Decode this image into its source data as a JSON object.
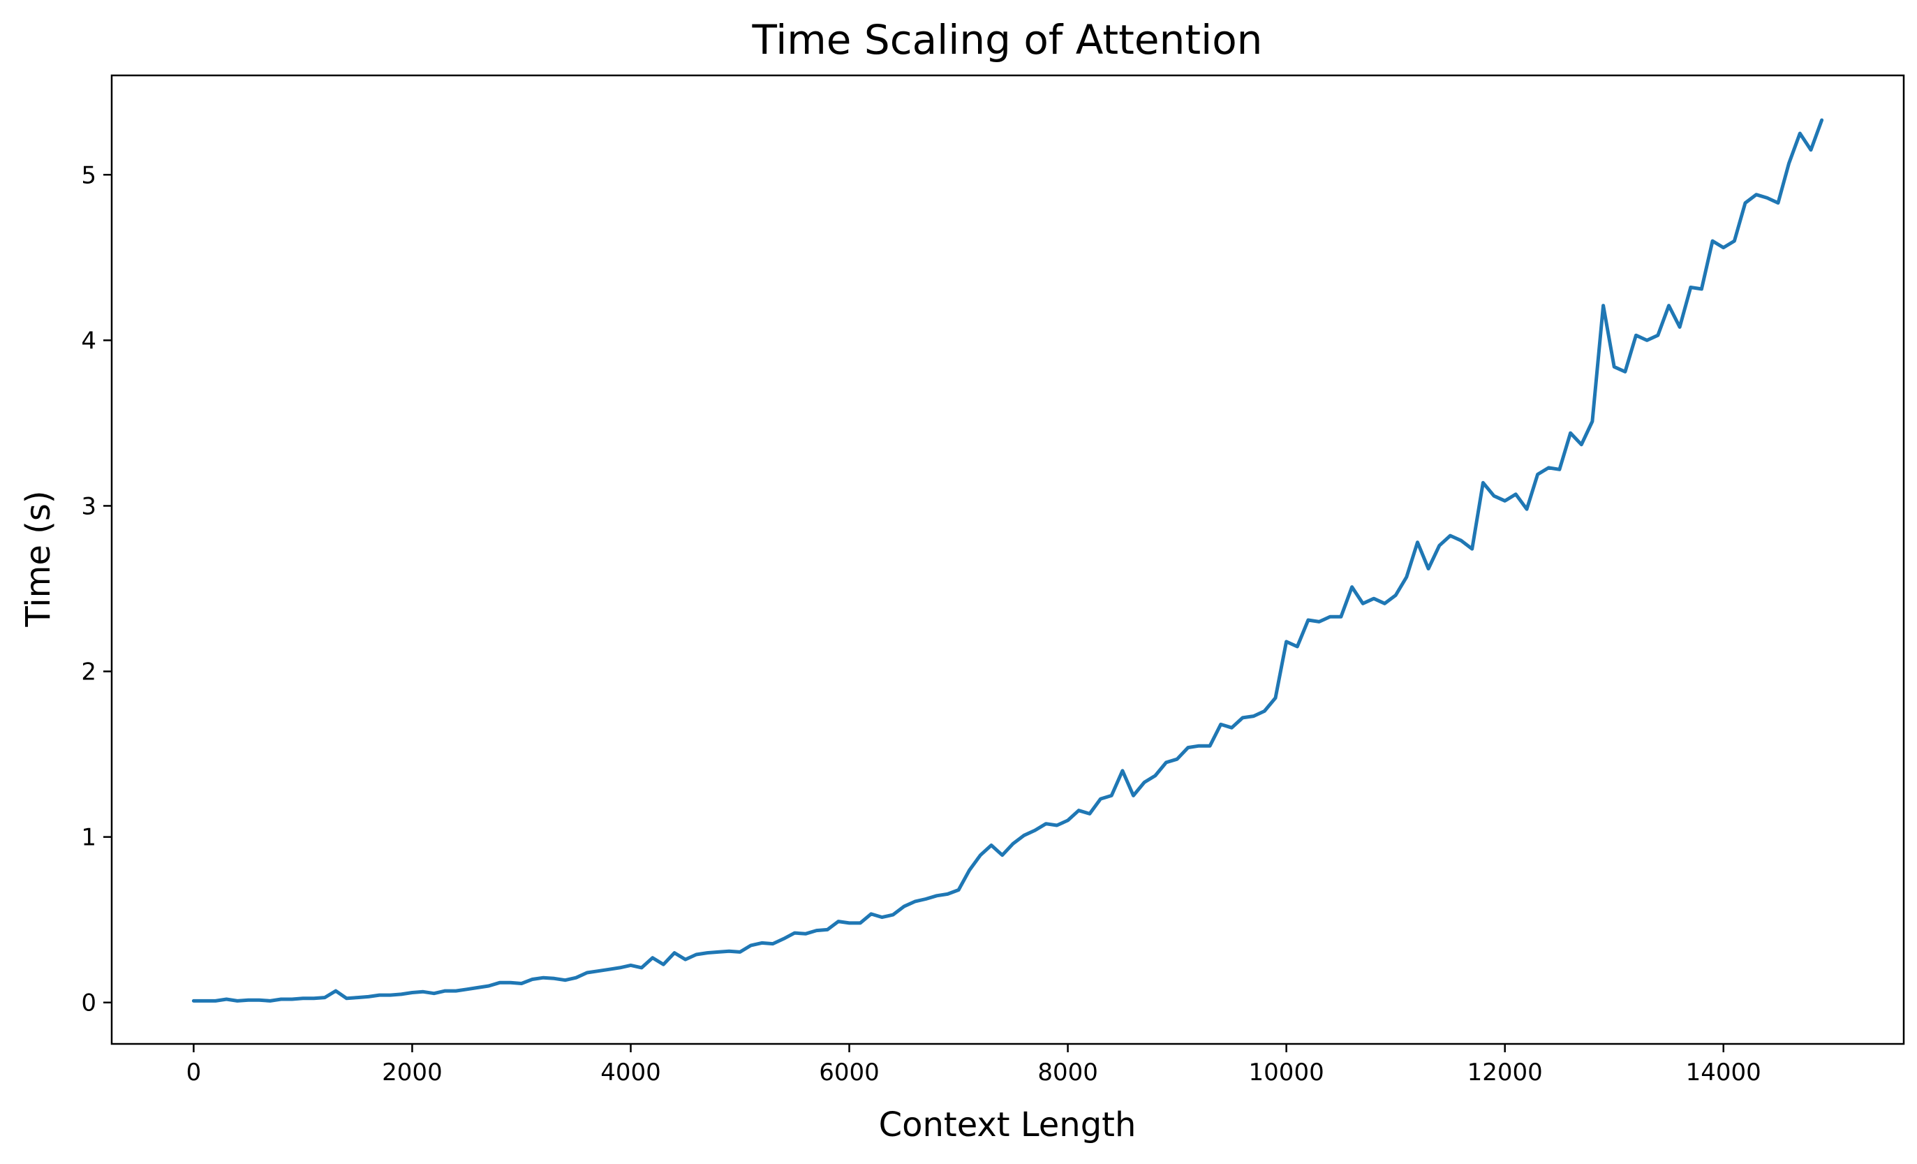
{
  "chart_data": {
    "type": "line",
    "title": "Time Scaling of Attention",
    "xlabel": "Context Length",
    "ylabel": "Time (s)",
    "xlim": [
      -750,
      15650
    ],
    "ylim": [
      -0.25,
      5.6
    ],
    "xticks": [
      0,
      2000,
      4000,
      6000,
      8000,
      10000,
      12000,
      14000
    ],
    "yticks": [
      0,
      1,
      2,
      3,
      4,
      5
    ],
    "grid": false,
    "line_color": "#1f77b4",
    "series": [
      {
        "x": [
          0,
          100,
          200,
          300,
          400,
          500,
          600,
          700,
          800,
          900,
          1000,
          1100,
          1200,
          1300,
          1400,
          1500,
          1600,
          1700,
          1800,
          1900,
          2000,
          2100,
          2200,
          2300,
          2400,
          2500,
          2600,
          2700,
          2800,
          2900,
          3000,
          3100,
          3200,
          3300,
          3400,
          3500,
          3600,
          3700,
          3800,
          3900,
          4000,
          4100,
          4200,
          4300,
          4400,
          4500,
          4600,
          4700,
          4800,
          4900,
          5000,
          5100,
          5200,
          5300,
          5400,
          5500,
          5600,
          5700,
          5800,
          5900,
          6000,
          6100,
          6200,
          6300,
          6400,
          6500,
          6600,
          6700,
          6800,
          6900,
          7000,
          7100,
          7200,
          7300,
          7400,
          7500,
          7600,
          7700,
          7800,
          7900,
          8000,
          8100,
          8200,
          8300,
          8400,
          8500,
          8600,
          8700,
          8800,
          8900,
          9000,
          9100,
          9200,
          9300,
          9400,
          9500,
          9600,
          9700,
          9800,
          9900,
          10000,
          10100,
          10200,
          10300,
          10400,
          10500,
          10600,
          10700,
          10800,
          10900,
          11000,
          11100,
          11200,
          11300,
          11400,
          11500,
          11600,
          11700,
          11800,
          11900,
          12000,
          12100,
          12200,
          12300,
          12400,
          12500,
          12600,
          12700,
          12800,
          12900,
          13000,
          13100,
          13200,
          13300,
          13400,
          13500,
          13600,
          13700,
          13800,
          13900,
          14000,
          14100,
          14200,
          14300,
          14400,
          14500,
          14600,
          14700,
          14800,
          14900
        ],
        "y": [
          0.01,
          0.01,
          0.01,
          0.02,
          0.01,
          0.015,
          0.015,
          0.01,
          0.02,
          0.02,
          0.025,
          0.025,
          0.03,
          0.07,
          0.025,
          0.03,
          0.035,
          0.045,
          0.045,
          0.05,
          0.06,
          0.065,
          0.055,
          0.07,
          0.07,
          0.08,
          0.09,
          0.1,
          0.12,
          0.12,
          0.115,
          0.14,
          0.15,
          0.145,
          0.135,
          0.15,
          0.18,
          0.19,
          0.2,
          0.21,
          0.225,
          0.21,
          0.27,
          0.23,
          0.3,
          0.26,
          0.29,
          0.3,
          0.305,
          0.31,
          0.305,
          0.345,
          0.36,
          0.355,
          0.385,
          0.42,
          0.415,
          0.435,
          0.44,
          0.49,
          0.48,
          0.48,
          0.535,
          0.515,
          0.53,
          0.58,
          0.61,
          0.625,
          0.645,
          0.655,
          0.68,
          0.8,
          0.89,
          0.95,
          0.89,
          0.96,
          1.01,
          1.04,
          1.08,
          1.07,
          1.1,
          1.16,
          1.14,
          1.23,
          1.25,
          1.4,
          1.25,
          1.33,
          1.37,
          1.45,
          1.47,
          1.54,
          1.55,
          1.55,
          1.68,
          1.66,
          1.72,
          1.73,
          1.76,
          1.84,
          2.18,
          2.15,
          2.31,
          2.3,
          2.33,
          2.33,
          2.51,
          2.41,
          2.44,
          2.41,
          2.46,
          2.57,
          2.78,
          2.62,
          2.76,
          2.82,
          2.79,
          2.74,
          3.14,
          3.06,
          3.03,
          3.07,
          2.98,
          3.19,
          3.23,
          3.22,
          3.44,
          3.37,
          3.51,
          4.21,
          3.84,
          3.81,
          4.03,
          4.0,
          4.03,
          4.21,
          4.08,
          4.32,
          4.31,
          4.6,
          4.56,
          4.6,
          4.83,
          4.88,
          4.86,
          4.83,
          5.07,
          5.25,
          5.15,
          5.33
        ]
      }
    ]
  }
}
